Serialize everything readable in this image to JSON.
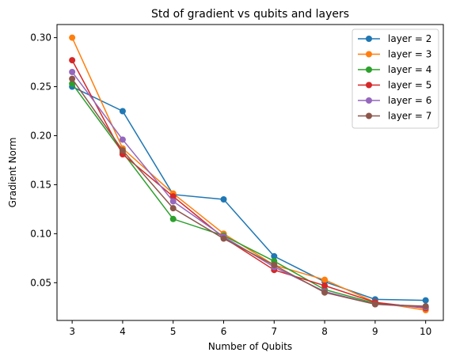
{
  "chart_data": {
    "type": "line",
    "title": "Std of gradient vs qubits and layers",
    "xlabel": "Number of Qubits",
    "ylabel": "Gradient Norm",
    "x": [
      3,
      4,
      5,
      6,
      7,
      8,
      9,
      10
    ],
    "xlim": [
      2.7,
      10.35
    ],
    "ylim": [
      0.0115,
      0.3134
    ],
    "xticks": [
      3,
      4,
      5,
      6,
      7,
      8,
      9,
      10
    ],
    "yticks": [
      0.05,
      0.1,
      0.15,
      0.2,
      0.25,
      0.3
    ],
    "ytick_labels": [
      "0.05",
      "0.10",
      "0.15",
      "0.20",
      "0.25",
      "0.30"
    ],
    "grid": false,
    "legend_position": "top-right",
    "marker": "circle",
    "series": [
      {
        "name": "layer = 2",
        "color": "#1f77b4",
        "values": [
          0.25,
          0.225,
          0.14,
          0.135,
          0.077,
          0.051,
          0.033,
          0.032
        ]
      },
      {
        "name": "layer = 3",
        "color": "#ff7f0e",
        "values": [
          0.3,
          0.187,
          0.141,
          0.1,
          0.068,
          0.053,
          0.03,
          0.022
        ]
      },
      {
        "name": "layer = 4",
        "color": "#2ca02c",
        "values": [
          0.253,
          0.183,
          0.115,
          0.098,
          0.072,
          0.043,
          0.029,
          0.025
        ]
      },
      {
        "name": "layer = 5",
        "color": "#d62728",
        "values": [
          0.277,
          0.181,
          0.138,
          0.096,
          0.063,
          0.047,
          0.03,
          0.024
        ]
      },
      {
        "name": "layer = 6",
        "color": "#9467bd",
        "values": [
          0.265,
          0.196,
          0.133,
          0.097,
          0.066,
          0.041,
          0.028,
          0.025
        ]
      },
      {
        "name": "layer = 7",
        "color": "#8c564b",
        "values": [
          0.258,
          0.185,
          0.126,
          0.095,
          0.068,
          0.04,
          0.028,
          0.026
        ]
      }
    ]
  }
}
